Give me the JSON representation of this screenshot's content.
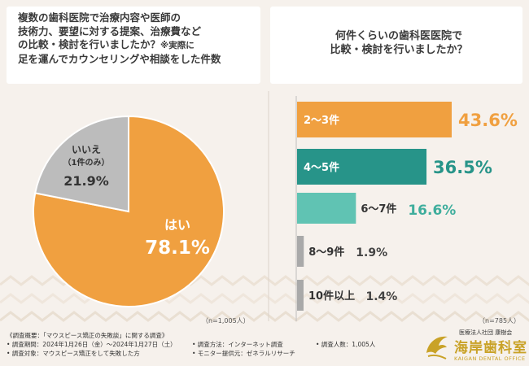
{
  "left_question": {
    "line1": "複数の歯科医院で治療内容や医師の",
    "line2": "技術力、要望に対する提案、治療費など",
    "line3": "の比較・検討を行いましたか？",
    "note_a": "※実際に",
    "line4": "足を運んでカウンセリングや相談をした件数"
  },
  "right_question": {
    "line1": "何件くらいの歯科医医院で",
    "line2": "比較・検討を行いましたか？"
  },
  "left_n": "（n=1,005人）",
  "right_n": "（n=785人）",
  "colors": {
    "orange": "#f0a040",
    "gray": "#bcbcbc",
    "teal": "#279489",
    "mint": "#60c3b3",
    "gray_bar": "#a9a9a9",
    "bg": "#f6f1ec"
  },
  "chart_data": [
    {
      "type": "pie",
      "title": "複数の歯科医院で治療内容や医師の技術力、要望に対する提案、治療費などの比較・検討を行いましたか？※実際に足を運んでカウンセリングや相談をした件数",
      "n": "（n=1,005人）",
      "slices": [
        {
          "label": "はい",
          "value": 78.1,
          "display": "78.1%",
          "color": "#f0a040",
          "text_color": "#ffffff"
        },
        {
          "label": "いいえ",
          "sublabel": "（1件のみ）",
          "value": 21.9,
          "display": "21.9%",
          "color": "#bcbcbc",
          "text_color": "#333333"
        }
      ]
    },
    {
      "type": "bar",
      "orientation": "horizontal",
      "title": "何件くらいの歯科医医院で比較・検討を行いましたか？",
      "n": "（n=785人）",
      "categories": [
        "2〜3件",
        "4〜5件",
        "6〜7件",
        "8〜9件",
        "10件以上"
      ],
      "values": [
        43.6,
        36.5,
        16.6,
        1.9,
        1.4
      ],
      "value_labels": [
        "43.6%",
        "36.5%",
        "16.6%",
        "1.9%",
        "1.4%"
      ],
      "colors": [
        "#f0a040",
        "#279489",
        "#60c3b3",
        "#a9a9a9",
        "#a9a9a9"
      ],
      "value_colors": [
        "#f0a040",
        "#279489",
        "#3fae9d",
        "#444444",
        "#444444"
      ],
      "xlim": [
        0,
        43.6
      ]
    }
  ],
  "footer": {
    "summary": "《調査概要：「マウスピース矯正の失敗談」に関する調査》",
    "period": "• 調査期間：2024年1月26日（金）〜2024年1月27日（土）",
    "target": "• 調査対象：マウスピース矯正をして失敗した方",
    "method": "• 調査方法：インターネット調査",
    "provider": "• モニター提供元：ゼネラルリサーチ",
    "count": "• 調査人数：1,005人"
  },
  "logo": {
    "subtitle": "医療法人社団 康樹会",
    "name": "海岸歯科室",
    "english": "KAIGAN DENTAL OFFICE"
  }
}
